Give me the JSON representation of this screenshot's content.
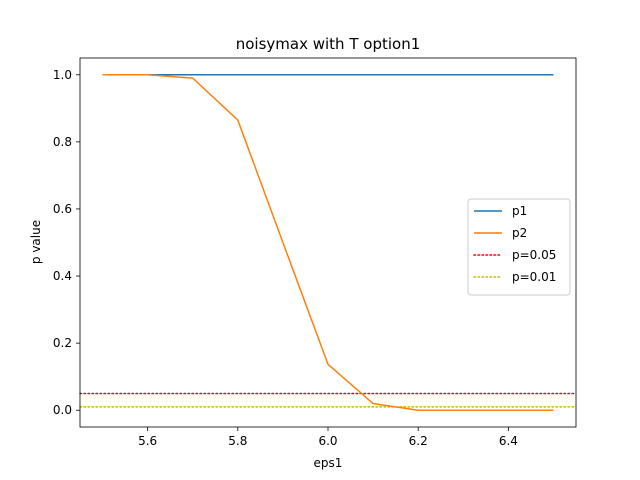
{
  "chart_data": {
    "type": "line",
    "title": "noisymax with T option1",
    "xlabel": "eps1",
    "ylabel": "p value",
    "xlim": [
      5.45,
      6.55
    ],
    "ylim": [
      -0.05,
      1.05
    ],
    "xticks": [
      "5.6",
      "5.8",
      "6.0",
      "6.2",
      "6.4"
    ],
    "yticks": [
      "0.0",
      "0.2",
      "0.4",
      "0.6",
      "0.8",
      "1.0"
    ],
    "x": [
      5.5,
      5.6,
      5.7,
      5.8,
      5.9,
      6.0,
      6.1,
      6.2,
      6.3,
      6.4,
      6.5
    ],
    "series": [
      {
        "name": "p1",
        "color": "#1f77b4",
        "style": "solid",
        "values": [
          1.0,
          1.0,
          1.0,
          1.0,
          1.0,
          1.0,
          1.0,
          1.0,
          1.0,
          1.0,
          1.0
        ]
      },
      {
        "name": "p2",
        "color": "#ff7f0e",
        "style": "solid",
        "values": [
          1.0,
          1.0,
          0.99,
          0.865,
          0.5,
          0.137,
          0.02,
          0.0,
          0.0,
          0.0,
          0.0
        ]
      }
    ],
    "reference_lines": [
      {
        "name": "p=0.05",
        "y": 0.05,
        "color": "#ff0000",
        "style": "dotted"
      },
      {
        "name": "p=0.01",
        "y": 0.01,
        "color": "#bfbf00",
        "style": "dotted"
      }
    ],
    "grid": false,
    "legend_position": "center-right"
  }
}
